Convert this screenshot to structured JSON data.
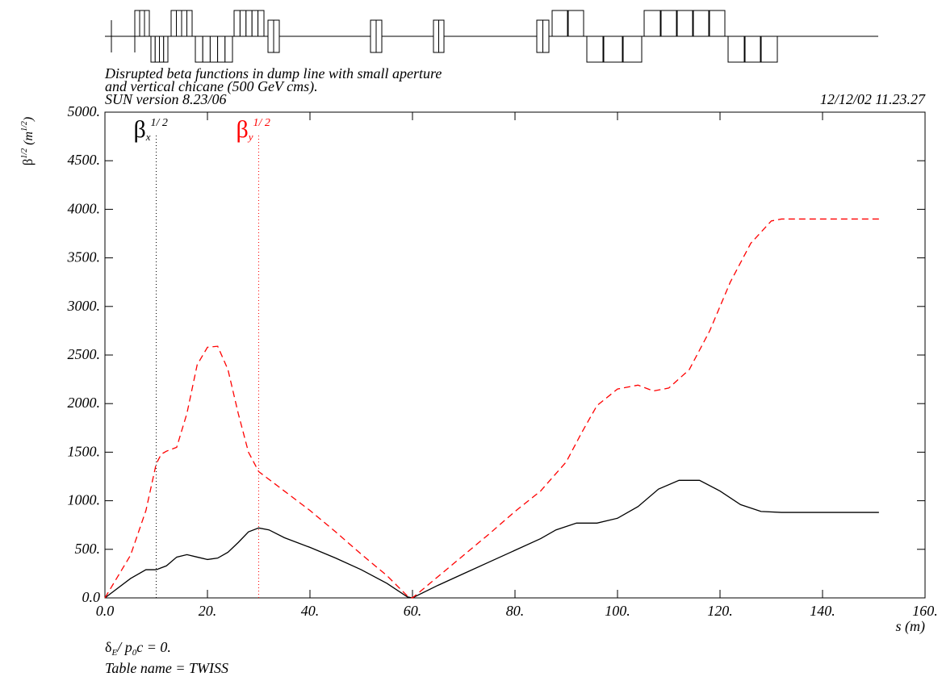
{
  "chart_data": {
    "type": "line",
    "title_lines": [
      "Disrupted beta functions in dump line with small aperture",
      "and vertical chicane (500 GeV cms)."
    ],
    "version": "SUN version 8.23/06",
    "timestamp": "12/12/02  11.23.27",
    "y_label_parts": [
      "β",
      "1/2",
      " (m",
      "1/2",
      ")"
    ],
    "x_label": "s (m)",
    "footer_parts": [
      "δ",
      "E",
      "/ p",
      "0",
      "c  =  0."
    ],
    "table_name": "Table name = TWISS",
    "xlim": [
      0,
      160
    ],
    "ylim": [
      0,
      5000
    ],
    "xticks": [
      {
        "value": 0,
        "label": "0.0"
      },
      {
        "value": 20,
        "label": "20."
      },
      {
        "value": 40,
        "label": "40."
      },
      {
        "value": 60,
        "label": "60."
      },
      {
        "value": 80,
        "label": "80."
      },
      {
        "value": 100,
        "label": "100."
      },
      {
        "value": 120,
        "label": "120."
      },
      {
        "value": 140,
        "label": "140."
      },
      {
        "value": 160,
        "label": "160."
      }
    ],
    "yticks": [
      {
        "value": 0,
        "label": "0.0"
      },
      {
        "value": 500,
        "label": "500."
      },
      {
        "value": 1000,
        "label": "1000."
      },
      {
        "value": 1500,
        "label": "1500."
      },
      {
        "value": 2000,
        "label": "2000."
      },
      {
        "value": 2500,
        "label": "2500."
      },
      {
        "value": 3000,
        "label": "3000."
      },
      {
        "value": 3500,
        "label": "3500."
      },
      {
        "value": 4000,
        "label": "4000."
      },
      {
        "value": 4500,
        "label": "4500."
      },
      {
        "value": 5000,
        "label": "5000."
      }
    ],
    "series": [
      {
        "symbol": "β",
        "subscript": "x",
        "superscript": "1/ 2",
        "color": "#000000",
        "dash": "none",
        "legend_s": 10,
        "x": [
          0,
          2,
          5,
          8,
          10,
          12,
          14,
          16,
          18,
          20,
          22,
          24,
          26,
          28,
          30,
          32,
          35,
          40,
          45,
          50,
          55,
          59,
          60,
          65,
          70,
          75,
          80,
          85,
          88,
          92,
          96,
          100,
          104,
          108,
          112,
          116,
          120,
          124,
          128,
          132,
          140,
          151
        ],
        "values": [
          0,
          80,
          200,
          290,
          290,
          330,
          420,
          445,
          420,
          395,
          410,
          470,
          570,
          680,
          720,
          700,
          620,
          520,
          410,
          290,
          150,
          10,
          0,
          130,
          250,
          370,
          490,
          610,
          700,
          770,
          770,
          820,
          940,
          1120,
          1210,
          1210,
          1100,
          960,
          890,
          880,
          880,
          880
        ]
      },
      {
        "symbol": "β",
        "subscript": "y",
        "superscript": "1/ 2",
        "color": "#ff0000",
        "dash": "8 5",
        "legend_s": 30,
        "x": [
          0,
          5,
          8,
          10,
          11,
          12,
          14,
          16,
          18,
          20,
          22,
          24,
          26,
          28,
          30,
          35,
          40,
          45,
          50,
          55,
          59,
          60,
          65,
          70,
          75,
          80,
          85,
          90,
          93,
          96,
          100,
          104,
          107,
          110,
          114,
          118,
          122,
          126,
          130,
          132,
          140,
          151
        ],
        "values": [
          0,
          440,
          900,
          1380,
          1480,
          1510,
          1550,
          1900,
          2400,
          2580,
          2590,
          2350,
          1900,
          1500,
          1300,
          1100,
          900,
          680,
          450,
          230,
          20,
          0,
          220,
          440,
          660,
          890,
          1100,
          1400,
          1700,
          1980,
          2150,
          2190,
          2130,
          2160,
          2350,
          2750,
          3250,
          3650,
          3880,
          3900,
          3900,
          3900
        ]
      }
    ]
  }
}
